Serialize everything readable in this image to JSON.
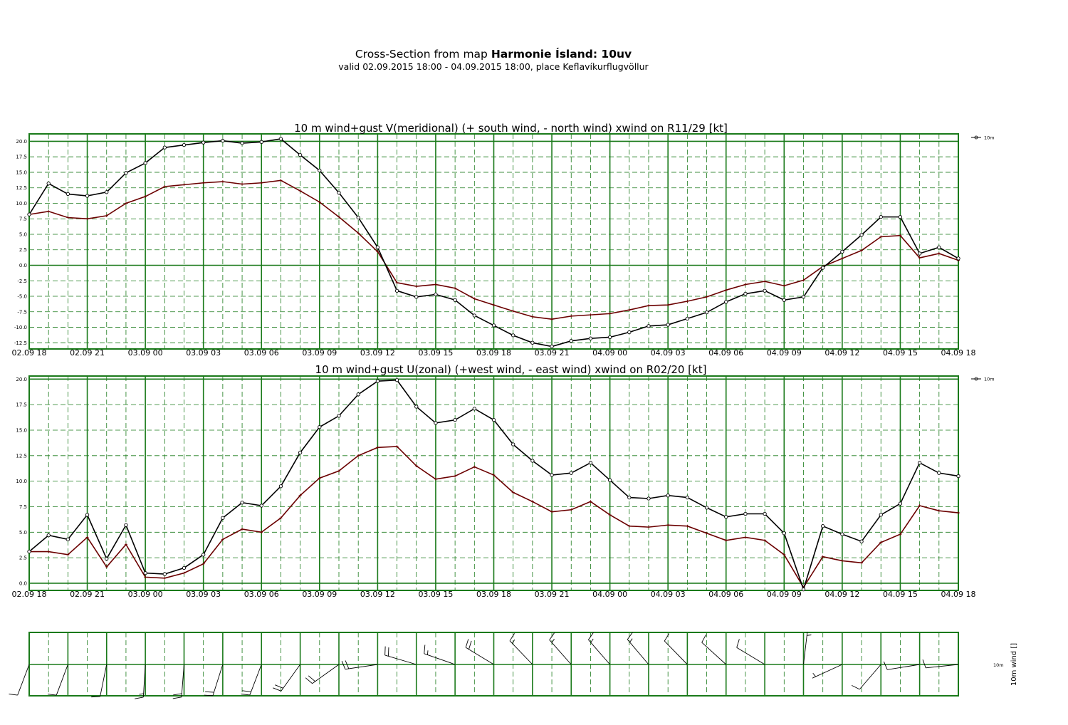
{
  "header": {
    "title_prefix": "Cross-Section from map ",
    "title_bold": "Harmonie Ísland: 10uv",
    "subtitle": "valid 02.09.2015 18:00 - 04.09.2015 18:00, place Keflavíkurflugvöllur"
  },
  "colors": {
    "grid": "#1a7a1a",
    "wind": "#000000",
    "gust": "#6b0000"
  },
  "chart_data": [
    {
      "type": "line",
      "title": "10 m wind+gust V(meridional) (+ south wind, - north wind) xwind on R11/29 [kt]",
      "x_tick_labels": [
        "02.09 18",
        "02.09 21",
        "03.09 00",
        "03.09 03",
        "03.09 06",
        "03.09 09",
        "03.09 12",
        "03.09 15",
        "03.09 18",
        "03.09 21",
        "04.09 00",
        "04.09 03",
        "04.09 06",
        "04.09 09",
        "04.09 12",
        "04.09 15",
        "04.09 18"
      ],
      "x_step_hours": 1,
      "ylim": [
        -13.5,
        21.2
      ],
      "y_ticks": [
        -12.5,
        -10,
        -7.5,
        -5,
        -2.5,
        0,
        2.5,
        5,
        7.5,
        10,
        12.5,
        15,
        17.5,
        20
      ],
      "y_tick_labels": [
        "-12.5",
        "-10.0",
        "-7.5",
        "-5.0",
        "-2.5",
        "0.0",
        "2.5",
        "5.0",
        "7.5",
        "10.0",
        "12.5",
        "15.0",
        "17.5",
        "20.0"
      ],
      "legend": "10m",
      "series": [
        {
          "values": [
            8.2,
            13.2,
            11.5,
            11.2,
            11.8,
            14.9,
            16.5,
            19.0,
            19.4,
            19.8,
            20.1,
            19.7,
            19.9,
            20.4,
            17.8,
            15.3,
            11.7,
            7.7,
            2.9,
            -4.1,
            -5.1,
            -4.7,
            -5.6,
            -8.1,
            -9.7,
            -11.3,
            -12.5,
            -13.1,
            -12.2,
            -11.8,
            -11.6,
            -10.8,
            -9.8,
            -9.6,
            -8.6,
            -7.6,
            -5.9,
            -4.6,
            -4.1,
            -5.6,
            -5.1,
            -0.4,
            2.2,
            4.9,
            7.8,
            7.8,
            1.9,
            2.9,
            1.1
          ]
        },
        {
          "values": [
            8.2,
            8.7,
            7.7,
            7.5,
            8.0,
            10.0,
            11.1,
            12.7,
            13.0,
            13.3,
            13.5,
            13.1,
            13.3,
            13.7,
            12.0,
            10.2,
            7.8,
            5.2,
            2.2,
            -2.8,
            -3.4,
            -3.1,
            -3.7,
            -5.4,
            -6.4,
            -7.4,
            -8.3,
            -8.7,
            -8.2,
            -8.0,
            -7.8,
            -7.2,
            -6.5,
            -6.4,
            -5.8,
            -5.1,
            -4.0,
            -3.1,
            -2.6,
            -3.3,
            -2.4,
            -0.2,
            1.1,
            2.4,
            4.6,
            4.8,
            1.2,
            1.9,
            0.8
          ]
        }
      ]
    },
    {
      "type": "line",
      "title": "10 m wind+gust U(zonal) (+west wind, - east wind) xwind on R02/20 [kt]",
      "x_tick_labels": [
        "02.09 18",
        "02.09 21",
        "03.09 00",
        "03.09 03",
        "03.09 06",
        "03.09 09",
        "03.09 12",
        "03.09 15",
        "03.09 18",
        "03.09 21",
        "04.09 00",
        "04.09 03",
        "04.09 06",
        "04.09 09",
        "04.09 12",
        "04.09 15",
        "04.09 18"
      ],
      "x_step_hours": 1,
      "ylim": [
        -0.7,
        20.3
      ],
      "y_ticks": [
        0,
        2.5,
        5,
        7.5,
        10,
        12.5,
        15,
        17.5,
        20
      ],
      "y_tick_labels": [
        "0.0",
        "2.5",
        "5.0",
        "7.5",
        "10.0",
        "12.5",
        "15.0",
        "17.5",
        "20.0"
      ],
      "legend": "10m",
      "series": [
        {
          "values": [
            3.1,
            4.7,
            4.3,
            6.7,
            2.4,
            5.7,
            1.0,
            0.9,
            1.5,
            2.8,
            6.4,
            7.9,
            7.6,
            9.5,
            12.8,
            15.3,
            16.4,
            18.5,
            19.8,
            19.9,
            17.3,
            15.7,
            16.0,
            17.1,
            16.0,
            13.6,
            12.0,
            10.6,
            10.8,
            11.8,
            10.1,
            8.4,
            8.3,
            8.6,
            8.4,
            7.4,
            6.5,
            6.8,
            6.8,
            4.9,
            -0.6,
            5.6,
            4.8,
            4.1,
            6.7,
            7.8,
            11.8,
            10.8,
            10.5
          ]
        },
        {
          "values": [
            3.1,
            3.1,
            2.8,
            4.5,
            1.6,
            3.8,
            0.6,
            0.5,
            1.0,
            1.9,
            4.3,
            5.3,
            5.0,
            6.4,
            8.6,
            10.3,
            11.0,
            12.5,
            13.3,
            13.4,
            11.5,
            10.2,
            10.5,
            11.4,
            10.6,
            8.9,
            8.0,
            7.0,
            7.2,
            8.0,
            6.7,
            5.6,
            5.5,
            5.7,
            5.6,
            4.9,
            4.2,
            4.5,
            4.2,
            2.8,
            -0.4,
            2.6,
            2.2,
            2.0,
            4.0,
            4.8,
            7.6,
            7.1,
            6.9
          ]
        }
      ]
    }
  ],
  "barbs": {
    "ylabel": "10m wind []",
    "level_label": "10m"
  }
}
